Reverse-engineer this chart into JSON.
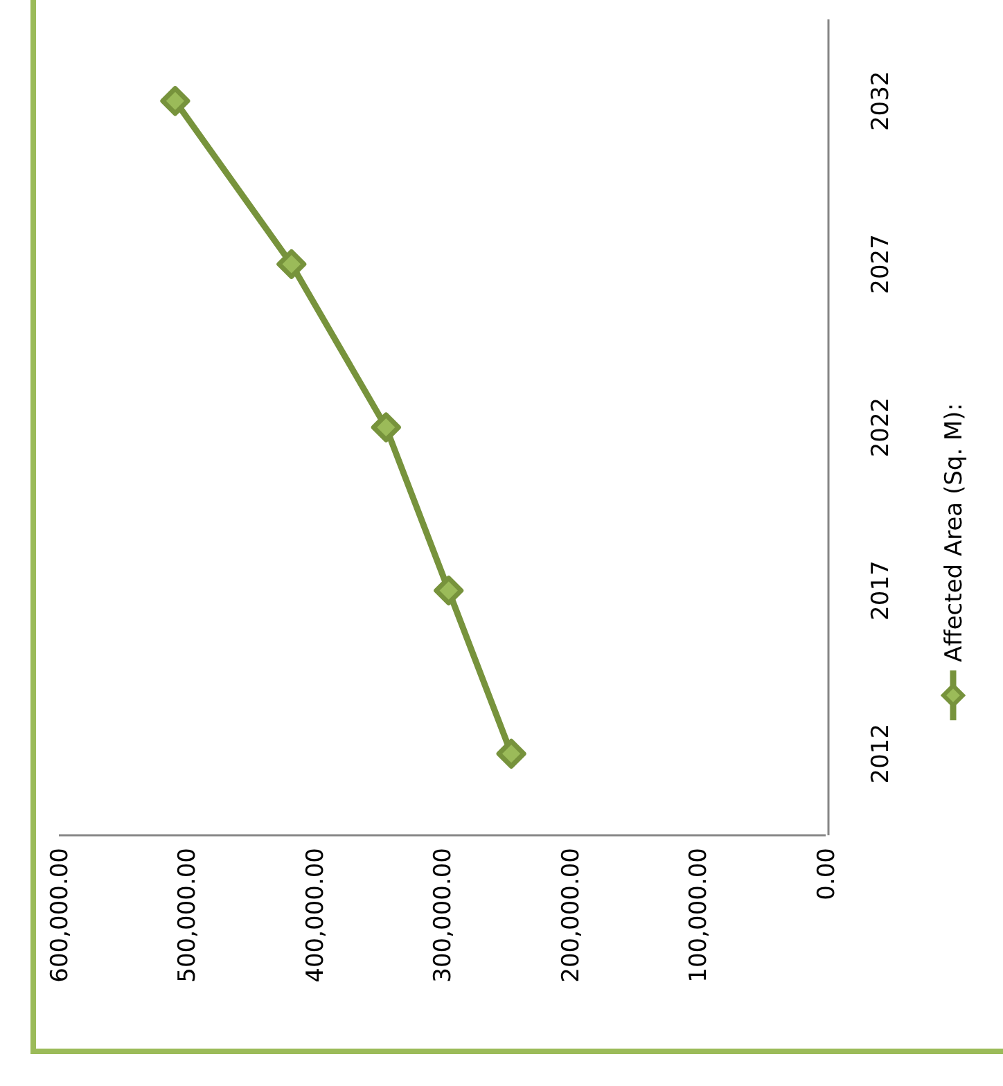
{
  "chart_data": {
    "type": "line",
    "orientation": "horizontal",
    "categories": [
      "2032",
      "2027",
      "2022",
      "2017",
      "2012"
    ],
    "series": [
      {
        "name": "Affected Area (Sq. M):",
        "color": "#77933c",
        "values": [
          509000,
          418000,
          344000,
          295000,
          246000
        ]
      }
    ],
    "xlim": [
      600000,
      0
    ],
    "xticks": [
      {
        "value": 600000,
        "label": "600,000.00"
      },
      {
        "value": 500000,
        "label": "500,000.00"
      },
      {
        "value": 400000,
        "label": "400,000.00"
      },
      {
        "value": 300000,
        "label": "300,000.00"
      },
      {
        "value": 200000,
        "label": "200,000.00"
      },
      {
        "value": 100000,
        "label": "100,000.00"
      },
      {
        "value": 0,
        "label": "0.00"
      }
    ],
    "grid": false,
    "legend": "right",
    "marker": "diamond",
    "line_style": "solid"
  }
}
